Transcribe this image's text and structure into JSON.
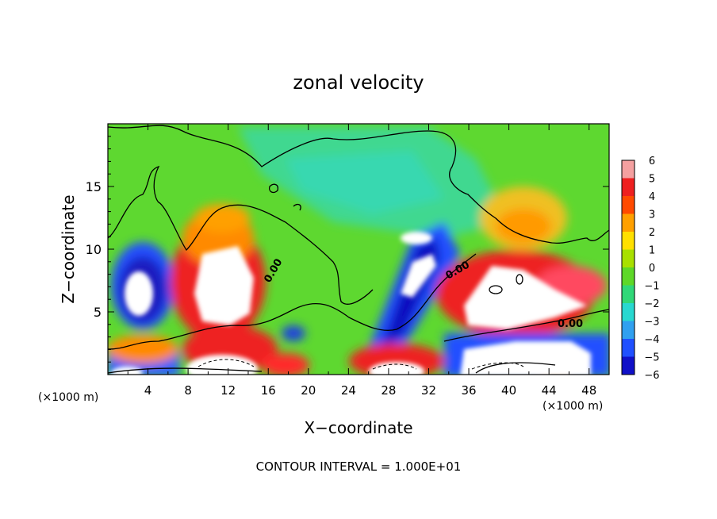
{
  "chart_data": {
    "type": "heatmap",
    "title": "zonal velocity",
    "xlabel": "X−coordinate",
    "ylabel": "Z−coordinate",
    "x_unit_left": "(×1000 m)",
    "x_unit_right": "(×1000 m)",
    "footer": "CONTOUR INTERVAL = 1.000E+01",
    "xlim": [
      0,
      50
    ],
    "ylim": [
      0,
      20
    ],
    "x_ticks": [
      4,
      8,
      12,
      16,
      20,
      24,
      28,
      32,
      36,
      40,
      44,
      48
    ],
    "y_ticks": [
      5,
      10,
      15
    ],
    "colorbar": {
      "levels": [
        6,
        5,
        4,
        3,
        2,
        1,
        0,
        -1,
        -2,
        -3,
        -4,
        -5,
        -6
      ],
      "colors": [
        "#f4a0a0",
        "#ee2020",
        "#ff4a00",
        "#ffa000",
        "#ffe000",
        "#a8e000",
        "#5ed828",
        "#30d878",
        "#28d8d0",
        "#30a0f0",
        "#2050ff",
        "#1010c8",
        "#7000a0"
      ]
    },
    "contour_labels": [
      "0.00",
      "0.00",
      "0.00"
    ]
  }
}
